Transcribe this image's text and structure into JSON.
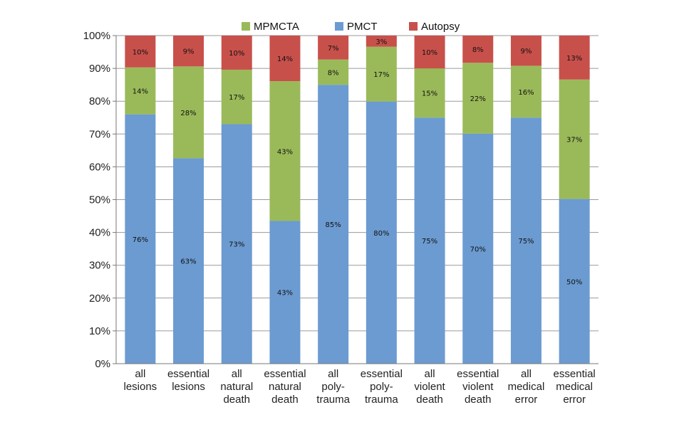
{
  "chart_data": {
    "type": "bar",
    "stacked": true,
    "categories": [
      [
        "all",
        "lesions"
      ],
      [
        "essential",
        "lesions"
      ],
      [
        "all",
        "natural",
        "death"
      ],
      [
        "essential",
        "natural",
        "death"
      ],
      [
        "all",
        "poly-",
        "trauma"
      ],
      [
        "essential",
        "poly-",
        "trauma"
      ],
      [
        "all",
        "violent",
        "death"
      ],
      [
        "essential",
        "violent",
        "death"
      ],
      [
        "all",
        "medical",
        "error"
      ],
      [
        "essential",
        "medical",
        "error"
      ]
    ],
    "series": [
      {
        "name": "PMCT",
        "color": "#6b9bd1",
        "values": [
          76,
          63,
          73,
          43,
          85,
          80,
          75,
          70,
          75,
          50
        ],
        "plotted": [
          76,
          62.6,
          73,
          43.5,
          85,
          79.9,
          75,
          70.1,
          75,
          50.2
        ],
        "labels": [
          "76%",
          "63%",
          "73%",
          "43%",
          "85%",
          "80%",
          "75%",
          "70%",
          "75%",
          "50%"
        ]
      },
      {
        "name": "MPMCTA",
        "color": "#9aba59",
        "values": [
          14,
          28,
          17,
          43,
          8,
          17,
          15,
          22,
          16,
          37
        ],
        "plotted": [
          14.3,
          28,
          16.6,
          42.6,
          7.7,
          16.7,
          15,
          21.6,
          15.8,
          36.4
        ],
        "labels": [
          "14%",
          "28%",
          "17%",
          "43%",
          "8%",
          "17%",
          "15%",
          "22%",
          "16%",
          "37%"
        ]
      },
      {
        "name": "Autopsy",
        "color": "#c8504b",
        "values": [
          10,
          9,
          10,
          14,
          7,
          3,
          10,
          8,
          9,
          13
        ],
        "plotted": [
          9.7,
          9.4,
          10.4,
          13.9,
          7.3,
          3.4,
          10,
          8.3,
          9.2,
          13.4
        ],
        "labels": [
          "10%",
          "9%",
          "10%",
          "14%",
          "7%",
          "3%",
          "10%",
          "8%",
          "9%",
          "13%"
        ]
      }
    ],
    "legend_order": [
      "MPMCTA",
      "PMCT",
      "Autopsy"
    ],
    "legend_position": "top",
    "yticks": [
      "0%",
      "10%",
      "20%",
      "30%",
      "40%",
      "50%",
      "60%",
      "70%",
      "80%",
      "90%",
      "100%"
    ],
    "ylim": [
      0,
      100
    ],
    "grid": true,
    "title": "",
    "xlabel": "",
    "ylabel": ""
  }
}
